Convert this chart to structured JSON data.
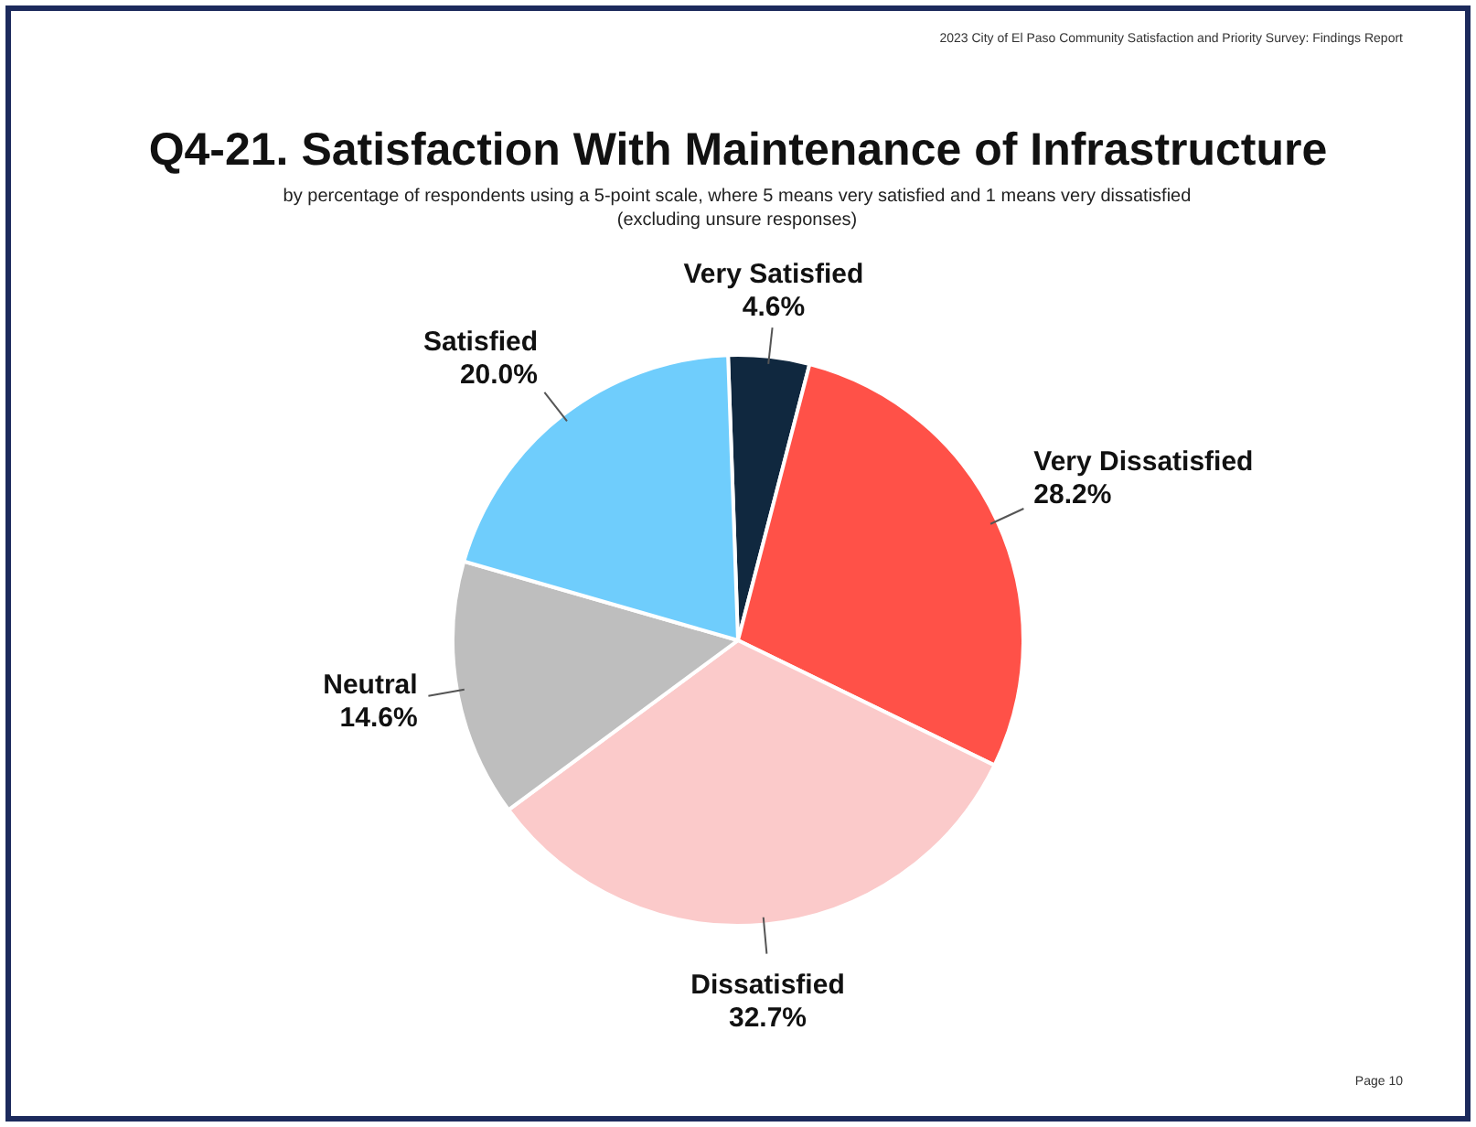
{
  "chart_data": {
    "type": "pie",
    "title": "Q4-21. Satisfaction With Maintenance of Infrastructure",
    "subtitle": "by percentage of respondents using a 5-point scale, where 5 means very satisfied and 1 means very dissatisfied (excluding unsure responses)",
    "categories": [
      "Very Satisfied",
      "Very Dissatisfied",
      "Dissatisfied",
      "Neutral",
      "Satisfied"
    ],
    "values": [
      4.6,
      28.2,
      32.7,
      14.6,
      20.0
    ],
    "value_labels": [
      "4.6%",
      "28.2%",
      "32.7%",
      "14.6%",
      "20.0%"
    ],
    "colors": [
      "#10283f",
      "#ff5148",
      "#fbcaca",
      "#bebebe",
      "#6fcdfc"
    ],
    "legend": false,
    "annotations": [
      "2023 City of El Paso Community Satisfaction and Priority Survey: Findings Report",
      "Page 10"
    ]
  }
}
